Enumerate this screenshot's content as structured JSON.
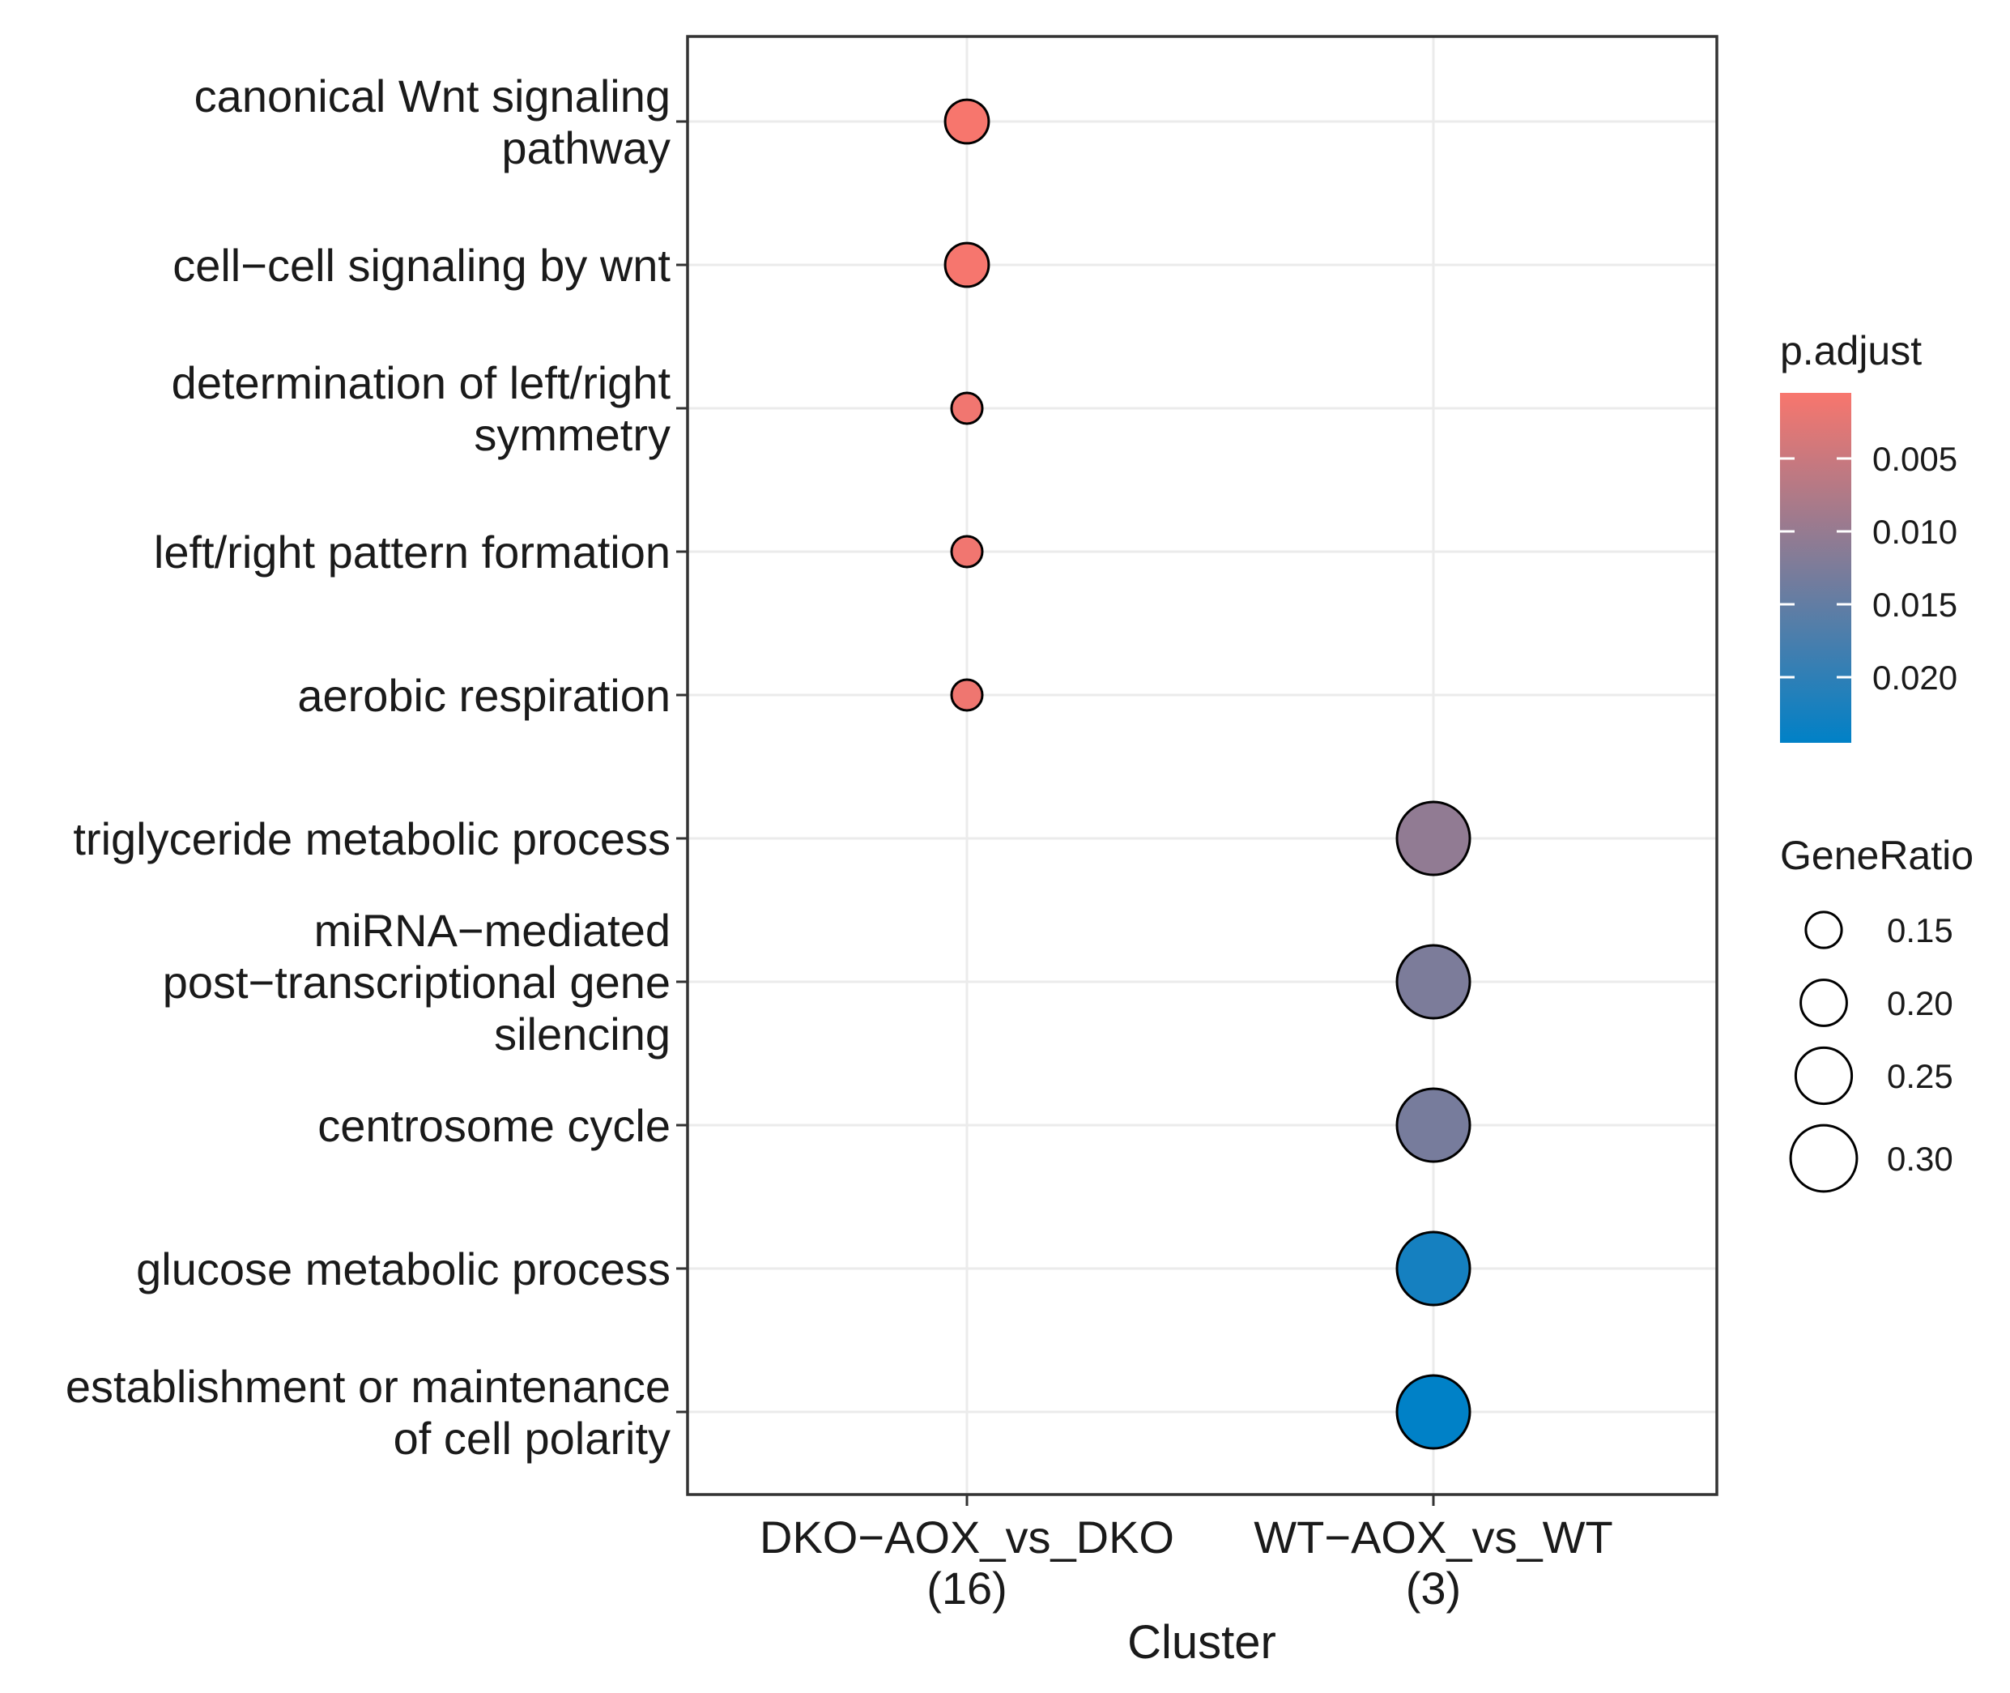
{
  "chart_data": {
    "type": "scatter",
    "subtype": "dotplot",
    "xlabel": "Cluster",
    "ylabel": "",
    "categories_x": [
      {
        "lines": [
          "DKO−AOX_vs_DKO",
          "(16)"
        ]
      },
      {
        "lines": [
          "WT−AOX_vs_WT",
          "(3)"
        ]
      }
    ],
    "categories_y": [
      {
        "lines": [
          "canonical Wnt signaling",
          "pathway"
        ]
      },
      {
        "lines": [
          "cell−cell signaling by wnt"
        ]
      },
      {
        "lines": [
          "determination of left/right",
          "symmetry"
        ]
      },
      {
        "lines": [
          "left/right pattern formation"
        ]
      },
      {
        "lines": [
          "aerobic respiration"
        ]
      },
      {
        "lines": [
          "triglyceride metabolic process"
        ]
      },
      {
        "lines": [
          "miRNA−mediated",
          "post−transcriptional gene",
          "silencing"
        ]
      },
      {
        "lines": [
          "centrosome cycle"
        ]
      },
      {
        "lines": [
          "glucose metabolic process"
        ]
      },
      {
        "lines": [
          "establishment or maintenance",
          "of cell polarity"
        ]
      }
    ],
    "points": [
      {
        "x": 0,
        "y": 0,
        "gene_ratio": 0.188,
        "p_adjust": 0.0006
      },
      {
        "x": 0,
        "y": 1,
        "gene_ratio": 0.188,
        "p_adjust": 0.0007
      },
      {
        "x": 0,
        "y": 2,
        "gene_ratio": 0.125,
        "p_adjust": 0.0012
      },
      {
        "x": 0,
        "y": 3,
        "gene_ratio": 0.125,
        "p_adjust": 0.0012
      },
      {
        "x": 0,
        "y": 4,
        "gene_ratio": 0.125,
        "p_adjust": 0.0014
      },
      {
        "x": 1,
        "y": 5,
        "gene_ratio": 0.333,
        "p_adjust": 0.0105
      },
      {
        "x": 1,
        "y": 6,
        "gene_ratio": 0.333,
        "p_adjust": 0.0125
      },
      {
        "x": 1,
        "y": 7,
        "gene_ratio": 0.333,
        "p_adjust": 0.013
      },
      {
        "x": 1,
        "y": 8,
        "gene_ratio": 0.333,
        "p_adjust": 0.0225
      },
      {
        "x": 1,
        "y": 9,
        "gene_ratio": 0.333,
        "p_adjust": 0.0245
      }
    ],
    "color_legend": {
      "title": "p.adjust",
      "range": [
        0.0005,
        0.0245
      ],
      "low_color": "#F8766D",
      "high_color": "#0081C7",
      "ticks": [
        {
          "value": 0.005,
          "label": "0.005"
        },
        {
          "value": 0.01,
          "label": "0.010"
        },
        {
          "value": 0.015,
          "label": "0.015"
        },
        {
          "value": 0.02,
          "label": "0.020"
        }
      ]
    },
    "size_legend": {
      "title": "GeneRatio",
      "range": [
        0.125,
        0.333
      ],
      "ticks": [
        {
          "value": 0.15,
          "label": "0.15"
        },
        {
          "value": 0.2,
          "label": "0.20"
        },
        {
          "value": 0.25,
          "label": "0.25"
        },
        {
          "value": 0.3,
          "label": "0.30"
        }
      ]
    }
  }
}
